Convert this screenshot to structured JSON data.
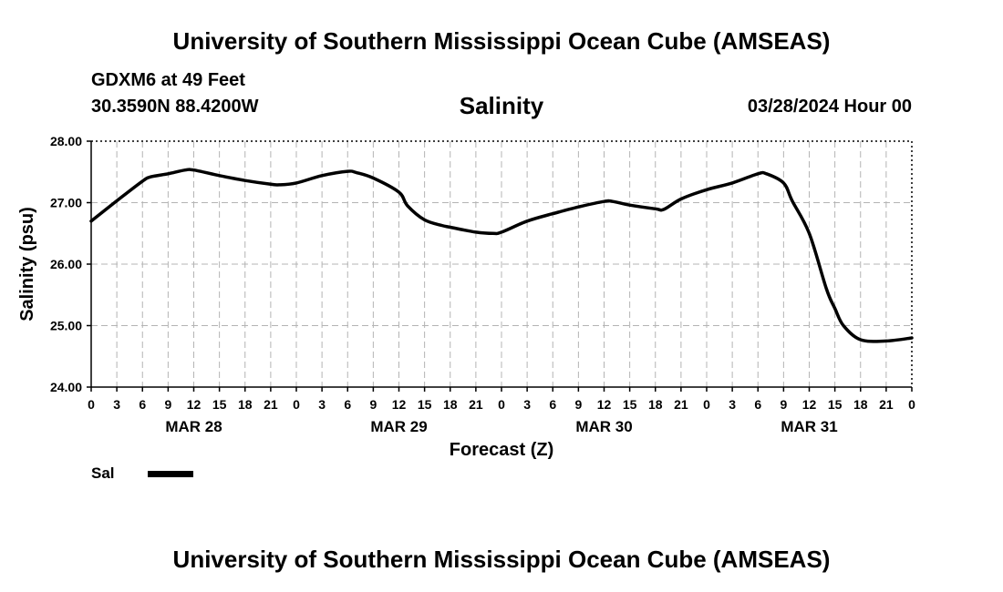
{
  "header": {
    "title": "University of Southern Mississippi Ocean Cube (AMSEAS)",
    "station": "GDXM6 at 49 Feet",
    "coords": "30.3590N  88.4200W",
    "timestamp": "03/28/2024 Hour 00"
  },
  "footer": {
    "title": "University of Southern Mississippi Ocean Cube (AMSEAS)"
  },
  "legend": {
    "label": "Sal"
  },
  "chart_data": {
    "type": "line",
    "title": "Salinity",
    "xlabel": "Forecast (Z)",
    "ylabel": "Salinity (psu)",
    "xlim": [
      0,
      96
    ],
    "ylim": [
      24,
      28
    ],
    "grid": true,
    "y_ticks": [
      24,
      25,
      26,
      27,
      28
    ],
    "y_tick_labels": [
      "24.00",
      "25.00",
      "26.00",
      "27.00",
      "28.00"
    ],
    "x_ticks": [
      0,
      3,
      6,
      9,
      12,
      15,
      18,
      21,
      24,
      27,
      30,
      33,
      36,
      39,
      42,
      45,
      48,
      51,
      54,
      57,
      60,
      63,
      66,
      69,
      72,
      75,
      78,
      81,
      84,
      87,
      90,
      93,
      96
    ],
    "x_tick_labels": [
      "0",
      "3",
      "6",
      "9",
      "12",
      "15",
      "18",
      "21",
      "0",
      "3",
      "6",
      "9",
      "12",
      "15",
      "18",
      "21",
      "0",
      "3",
      "6",
      "9",
      "12",
      "15",
      "18",
      "21",
      "0",
      "3",
      "6",
      "9",
      "12",
      "15",
      "18",
      "21",
      "0"
    ],
    "date_labels": [
      {
        "x": 12,
        "label": "MAR 28"
      },
      {
        "x": 36,
        "label": "MAR 29"
      },
      {
        "x": 60,
        "label": "MAR 30"
      },
      {
        "x": 84,
        "label": "MAR 31"
      }
    ],
    "series": [
      {
        "name": "Sal",
        "x": [
          0,
          3,
          6,
          7,
          9,
          11,
          12,
          15,
          18,
          21,
          22,
          24,
          27,
          30,
          31,
          33,
          36,
          37,
          39,
          41,
          42,
          45,
          47,
          48,
          51,
          54,
          57,
          60,
          61,
          63,
          66,
          67,
          69,
          72,
          75,
          78,
          79,
          81,
          82,
          84,
          86,
          87,
          88,
          90,
          93,
          96
        ],
        "y": [
          26.7,
          27.03,
          27.35,
          27.42,
          27.47,
          27.53,
          27.53,
          27.44,
          27.36,
          27.3,
          27.29,
          27.32,
          27.44,
          27.51,
          27.49,
          27.4,
          27.17,
          26.95,
          26.72,
          26.63,
          26.6,
          26.52,
          26.5,
          26.52,
          26.7,
          26.82,
          26.93,
          27.02,
          27.02,
          26.96,
          26.9,
          26.89,
          27.06,
          27.21,
          27.32,
          27.47,
          27.47,
          27.32,
          27.03,
          26.5,
          25.6,
          25.28,
          25.0,
          24.77,
          24.75,
          24.8
        ]
      }
    ]
  }
}
